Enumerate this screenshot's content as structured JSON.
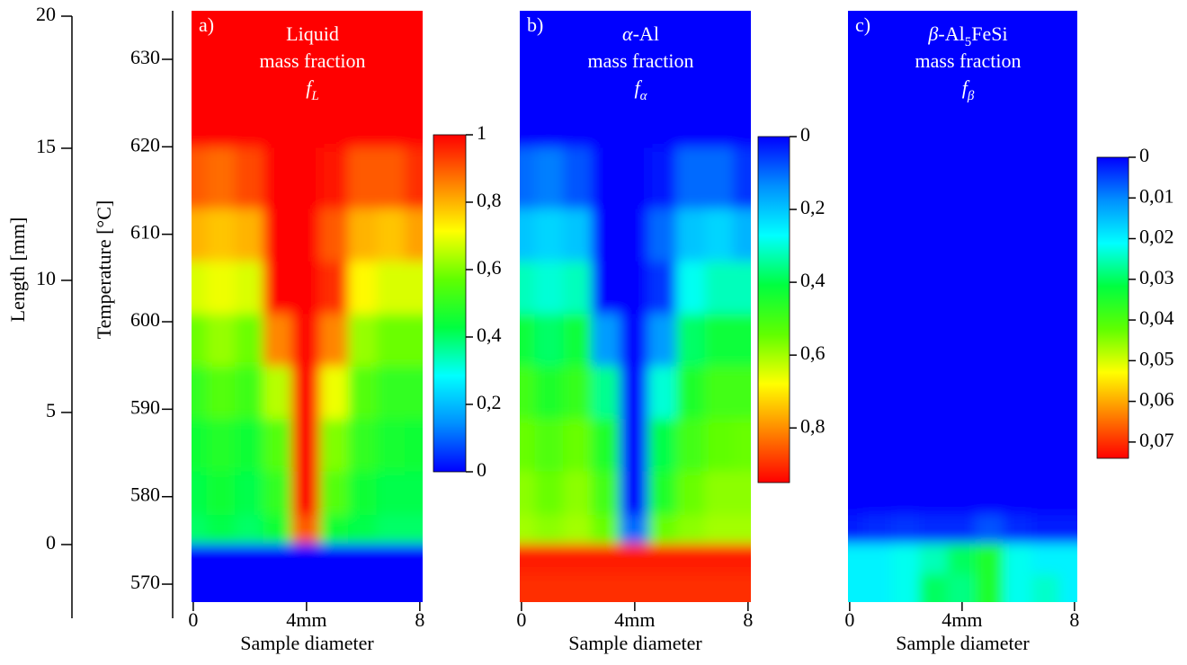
{
  "shared_axes": {
    "length": {
      "label": "Length [mm]",
      "ylim": [
        -2.79,
        20
      ],
      "yticks": [
        0,
        5,
        10,
        15,
        20
      ]
    },
    "temperature": {
      "label": "Temperature [°C]",
      "ylim": [
        566.1,
        635.55
      ],
      "yticks": [
        570,
        580,
        590,
        600,
        610,
        620,
        630
      ]
    }
  },
  "colorscale": [
    "#0000ff",
    "#0090ff",
    "#00ffff",
    "#00ff40",
    "#60ff00",
    "#ffff00",
    "#ff8000",
    "#ff0000"
  ],
  "chart_data": [
    {
      "type": "heatmap",
      "panel_label": "a)",
      "title_lines": [
        [
          {
            "text": "Liquid"
          }
        ],
        [
          {
            "text": "mass fraction"
          }
        ],
        [
          {
            "text": "f",
            "italic": true
          },
          {
            "text": "L",
            "italic": true,
            "sub": true
          }
        ]
      ],
      "xlabel": "Sample diameter",
      "xlim": [
        -0.06,
        8.1
      ],
      "xticks": [
        0,
        {
          "value": 4,
          "label": "4mm"
        },
        8
      ],
      "x": [
        0,
        1,
        2,
        3,
        4,
        5,
        6,
        7,
        8
      ],
      "y": [
        569,
        573.5,
        576,
        580,
        586,
        592,
        598,
        604,
        610,
        616,
        624,
        632
      ],
      "z": [
        [
          0,
          0,
          0,
          0,
          0,
          0,
          0,
          0,
          0
        ],
        [
          0,
          0,
          0,
          0,
          0,
          0,
          0,
          0,
          0
        ],
        [
          0.4,
          0.42,
          0.4,
          0.45,
          0.9,
          0.45,
          0.42,
          0.4,
          0.4
        ],
        [
          0.42,
          0.45,
          0.42,
          0.5,
          1,
          0.55,
          0.45,
          0.42,
          0.42
        ],
        [
          0.45,
          0.48,
          0.45,
          0.55,
          1,
          0.6,
          0.5,
          0.46,
          0.45
        ],
        [
          0.5,
          0.55,
          0.52,
          0.65,
          1,
          0.7,
          0.55,
          0.5,
          0.5
        ],
        [
          0.58,
          0.62,
          0.58,
          0.85,
          1,
          0.85,
          0.62,
          0.58,
          0.58
        ],
        [
          0.68,
          0.7,
          0.68,
          1,
          1,
          0.95,
          0.72,
          0.68,
          0.68
        ],
        [
          0.8,
          0.78,
          0.8,
          1,
          1,
          0.9,
          0.8,
          0.78,
          0.82
        ],
        [
          0.9,
          0.88,
          0.92,
          1,
          1,
          0.98,
          0.9,
          0.9,
          0.95
        ],
        [
          1,
          1,
          1,
          1,
          1,
          1,
          1,
          1,
          1
        ],
        [
          1,
          1,
          1,
          1,
          1,
          1,
          1,
          1,
          1
        ]
      ],
      "colorbar": {
        "zlim": [
          0,
          1
        ],
        "reversed": false,
        "ticks": [
          0,
          {
            "value": 0.2,
            "label": "0,2"
          },
          {
            "value": 0.4,
            "label": "0,4"
          },
          {
            "value": 0.6,
            "label": "0,6"
          },
          {
            "value": 0.8,
            "label": "0,8"
          },
          1
        ]
      }
    },
    {
      "type": "heatmap",
      "panel_label": "b)",
      "title_lines": [
        [
          {
            "text": "α",
            "italic": true
          },
          {
            "text": "-Al"
          }
        ],
        [
          {
            "text": "mass fraction"
          }
        ],
        [
          {
            "text": "f",
            "italic": true
          },
          {
            "text": "α",
            "italic": true,
            "sub": true
          }
        ]
      ],
      "xlabel": "Sample diameter",
      "xlim": [
        -0.06,
        8.1
      ],
      "xticks": [
        0,
        {
          "value": 4,
          "label": "4mm"
        },
        8
      ],
      "x": [
        0,
        1,
        2,
        3,
        4,
        5,
        6,
        7,
        8
      ],
      "y": [
        569,
        573.5,
        576,
        580,
        586,
        592,
        598,
        604,
        610,
        616,
        624,
        632
      ],
      "z": [
        [
          0.9,
          0.9,
          0.9,
          0.9,
          0.9,
          0.9,
          0.9,
          0.9,
          0.9
        ],
        [
          0.92,
          0.92,
          0.92,
          0.92,
          0.92,
          0.92,
          0.92,
          0.92,
          0.92
        ],
        [
          0.6,
          0.58,
          0.6,
          0.55,
          0.1,
          0.55,
          0.58,
          0.6,
          0.6
        ],
        [
          0.58,
          0.55,
          0.58,
          0.5,
          0,
          0.45,
          0.55,
          0.58,
          0.58
        ],
        [
          0.55,
          0.52,
          0.55,
          0.45,
          0,
          0.4,
          0.5,
          0.54,
          0.55
        ],
        [
          0.5,
          0.45,
          0.48,
          0.35,
          0,
          0.3,
          0.45,
          0.5,
          0.5
        ],
        [
          0.42,
          0.38,
          0.42,
          0.15,
          0,
          0.15,
          0.38,
          0.42,
          0.42
        ],
        [
          0.32,
          0.3,
          0.32,
          0,
          0,
          0.05,
          0.28,
          0.32,
          0.32
        ],
        [
          0.2,
          0.22,
          0.2,
          0,
          0,
          0.1,
          0.2,
          0.22,
          0.18
        ],
        [
          0.1,
          0.12,
          0.08,
          0,
          0,
          0.02,
          0.1,
          0.1,
          0.05
        ],
        [
          0,
          0,
          0,
          0,
          0,
          0,
          0,
          0,
          0
        ],
        [
          0,
          0,
          0,
          0,
          0,
          0,
          0,
          0,
          0
        ]
      ],
      "colorbar": {
        "zlim": [
          0,
          0.95
        ],
        "reversed": true,
        "ticks": [
          0,
          {
            "value": 0.2,
            "label": "0,2"
          },
          {
            "value": 0.4,
            "label": "0,4"
          },
          {
            "value": 0.6,
            "label": "0,6"
          },
          {
            "value": 0.8,
            "label": "0,8"
          }
        ]
      }
    },
    {
      "type": "heatmap",
      "panel_label": "c)",
      "title_lines": [
        [
          {
            "text": "β",
            "italic": true
          },
          {
            "text": "-Al"
          },
          {
            "text": "5",
            "sub": true
          },
          {
            "text": "FeSi"
          }
        ],
        [
          {
            "text": "mass fraction"
          }
        ],
        [
          {
            "text": "f",
            "italic": true
          },
          {
            "text": "β",
            "italic": true,
            "sub": true
          }
        ]
      ],
      "xlabel": "Sample diameter",
      "xlim": [
        -0.06,
        8.1
      ],
      "xticks": [
        0,
        {
          "value": 4,
          "label": "4mm"
        },
        8
      ],
      "x": [
        0,
        1,
        2,
        3,
        4,
        5,
        6,
        7,
        8
      ],
      "y": [
        569,
        573.5,
        576,
        580,
        586,
        592,
        598,
        604,
        610,
        616,
        624,
        632
      ],
      "z": [
        [
          0.02,
          0.02,
          0.022,
          0.03,
          0.028,
          0.035,
          0.022,
          0.024,
          0.02
        ],
        [
          0.02,
          0.02,
          0.022,
          0.025,
          0.03,
          0.035,
          0.022,
          0.02,
          0.02
        ],
        [
          0.002,
          0.003,
          0.004,
          0.003,
          0.003,
          0.006,
          0.003,
          0.002,
          0.002
        ],
        [
          0,
          0,
          0,
          0,
          0,
          0,
          0,
          0,
          0
        ],
        [
          0,
          0,
          0,
          0,
          0,
          0,
          0,
          0,
          0
        ],
        [
          0,
          0,
          0,
          0,
          0,
          0,
          0,
          0,
          0
        ],
        [
          0,
          0,
          0,
          0,
          0,
          0,
          0,
          0,
          0
        ],
        [
          0,
          0,
          0,
          0,
          0,
          0,
          0,
          0,
          0
        ],
        [
          0,
          0,
          0,
          0,
          0,
          0,
          0,
          0,
          0
        ],
        [
          0,
          0,
          0,
          0,
          0,
          0,
          0,
          0,
          0
        ],
        [
          0,
          0,
          0,
          0,
          0,
          0,
          0,
          0,
          0
        ],
        [
          0,
          0,
          0,
          0,
          0,
          0,
          0,
          0,
          0
        ]
      ],
      "colorbar": {
        "zlim": [
          0,
          0.074
        ],
        "reversed": true,
        "ticks": [
          0,
          {
            "value": 0.01,
            "label": "0,01"
          },
          {
            "value": 0.02,
            "label": "0,02"
          },
          {
            "value": 0.03,
            "label": "0,03"
          },
          {
            "value": 0.04,
            "label": "0,04"
          },
          {
            "value": 0.05,
            "label": "0,05"
          },
          {
            "value": 0.06,
            "label": "0,06"
          },
          {
            "value": 0.07,
            "label": "0,07"
          }
        ]
      }
    }
  ]
}
